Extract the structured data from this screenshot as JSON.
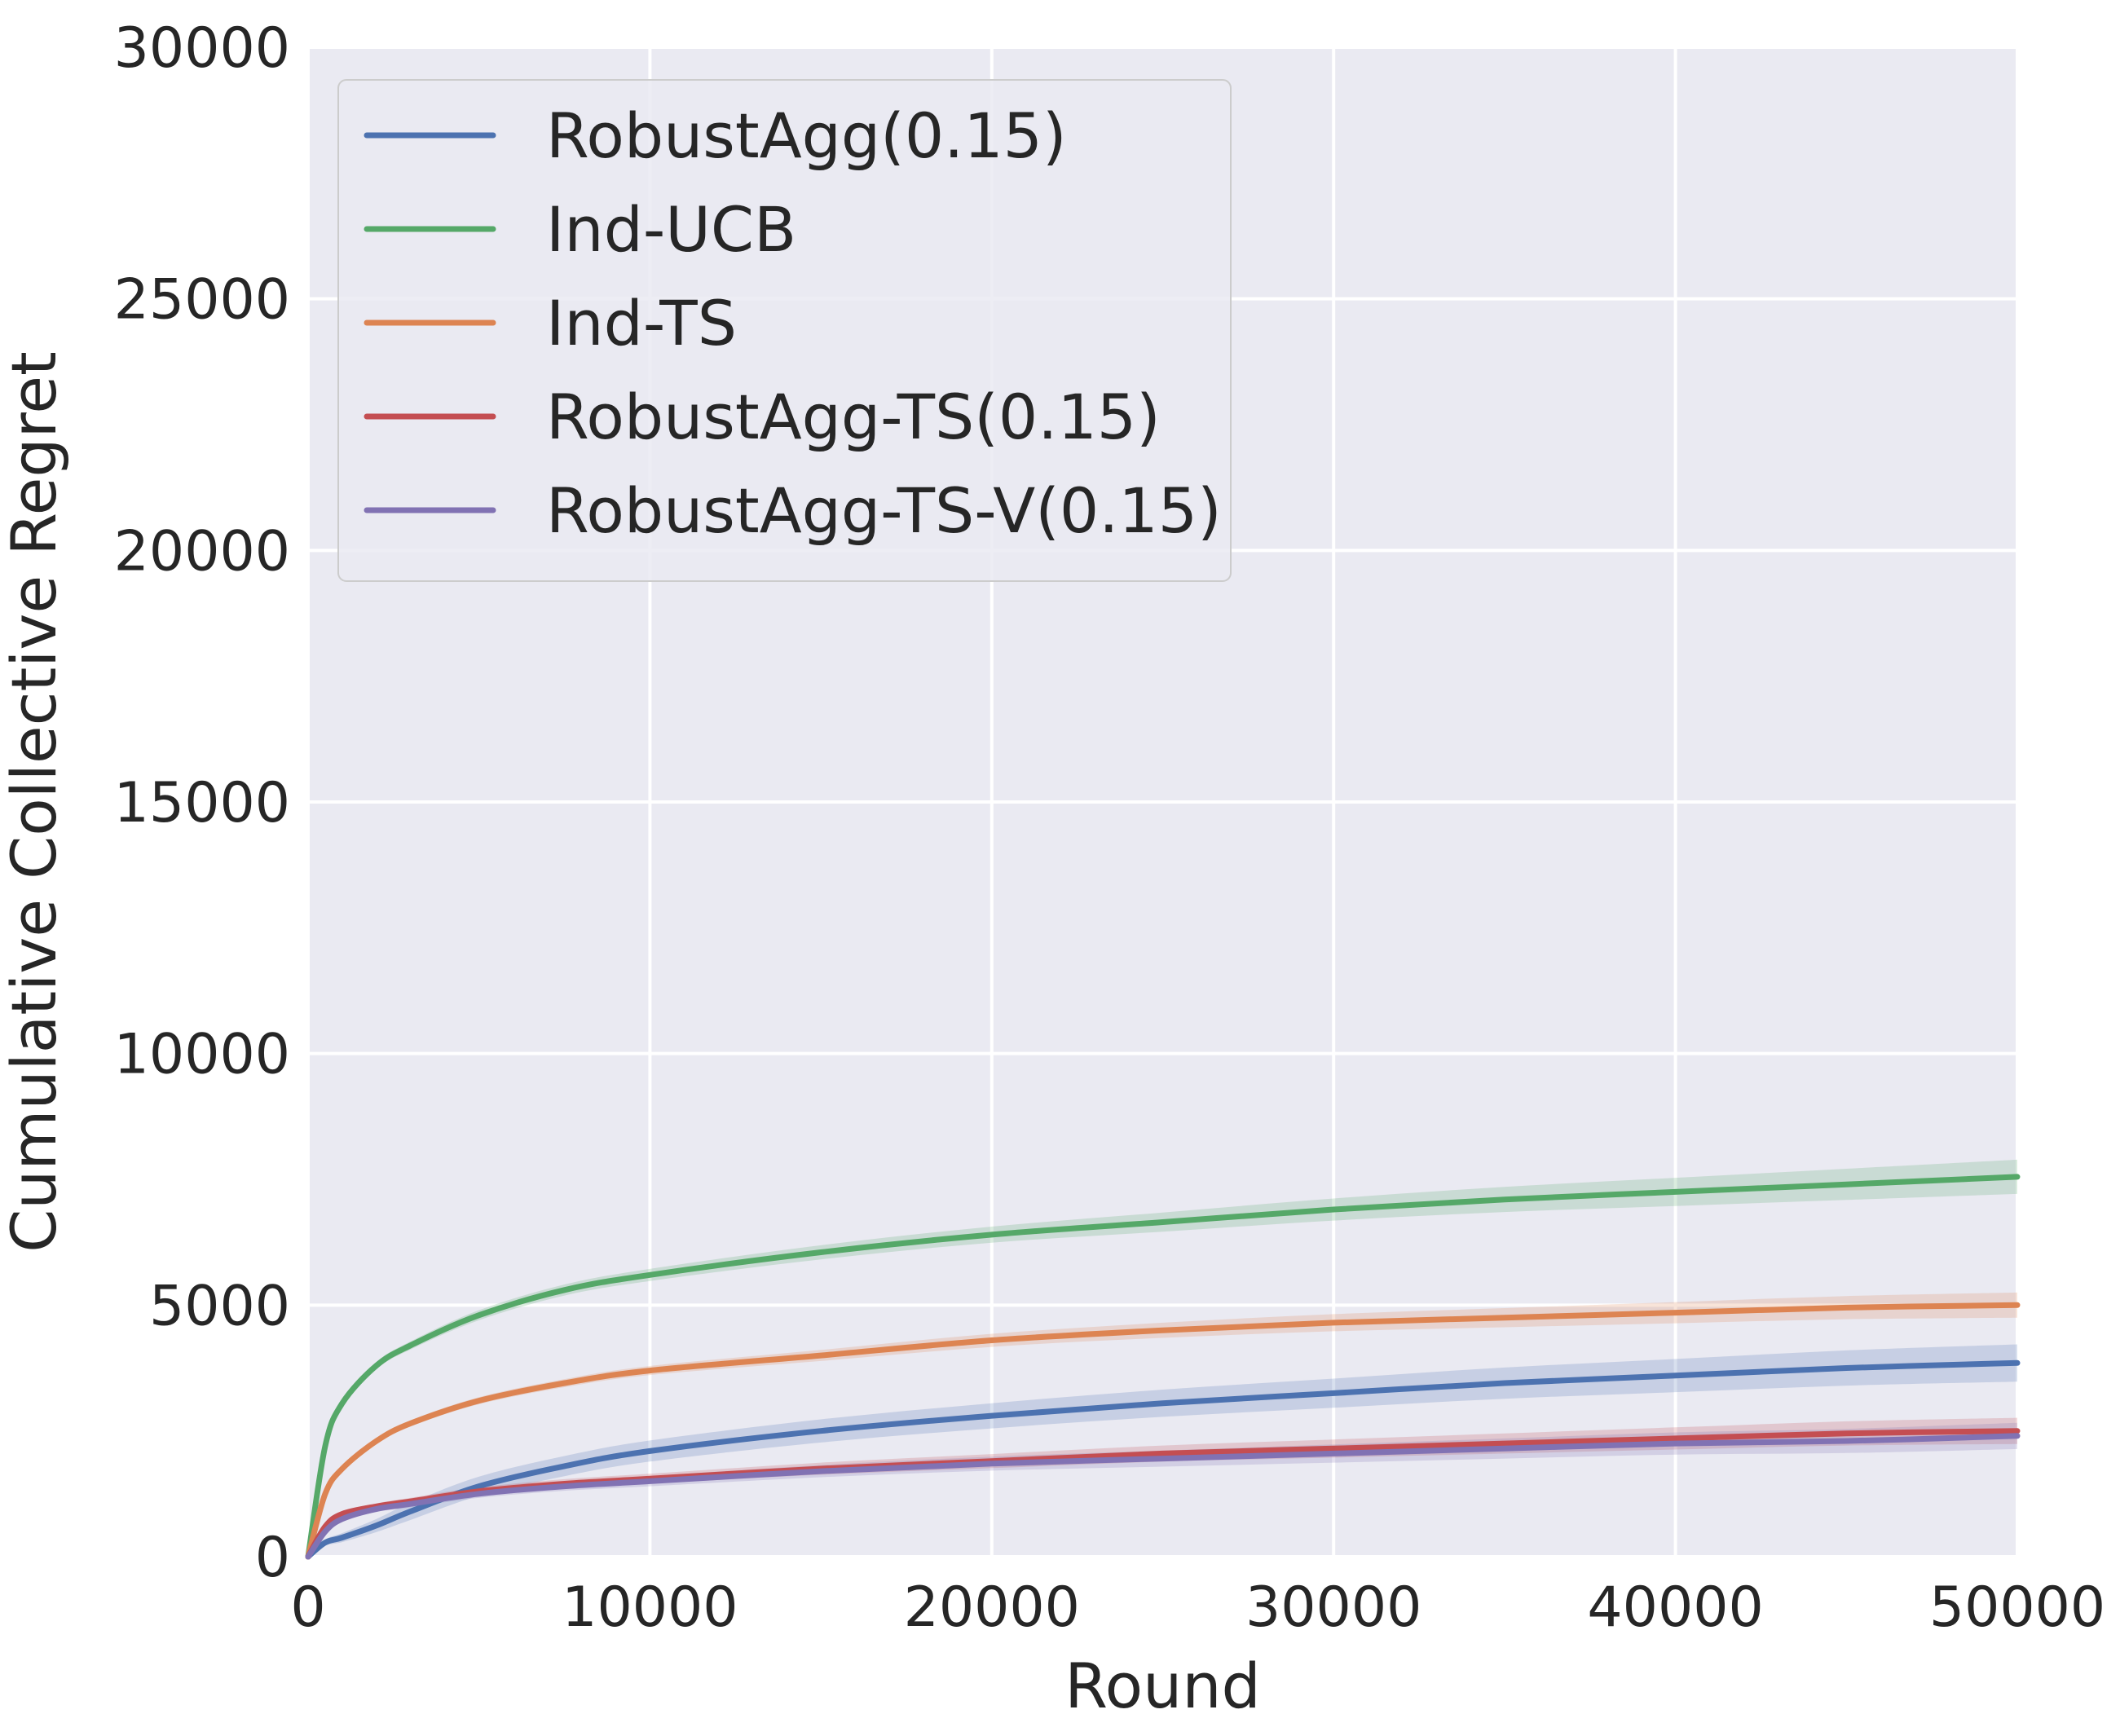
{
  "chart_data": {
    "type": "line",
    "xlabel": "Round",
    "ylabel": "Cumulative Collective Regret",
    "xlim": [
      0,
      50000
    ],
    "ylim": [
      0,
      30000
    ],
    "xticks": [
      0,
      10000,
      20000,
      30000,
      40000,
      50000
    ],
    "yticks": [
      0,
      5000,
      10000,
      15000,
      20000,
      25000,
      30000
    ],
    "xtick_labels": [
      "0",
      "10000",
      "20000",
      "30000",
      "40000",
      "50000"
    ],
    "ytick_labels": [
      "0",
      "5000",
      "10000",
      "15000",
      "20000",
      "25000",
      "30000"
    ],
    "grid": true,
    "background": "#eaeaf2",
    "legend_position": "top-left",
    "x": [
      0,
      500,
      1000,
      2000,
      3000,
      5000,
      7500,
      10000,
      15000,
      20000,
      25000,
      30000,
      35000,
      40000,
      45000,
      50000
    ],
    "series": [
      {
        "name": "RobustAgg(0.15)",
        "color": "#4c72b0",
        "values": [
          0,
          280,
          380,
          620,
          900,
          1400,
          1800,
          2100,
          2500,
          2800,
          3050,
          3250,
          3450,
          3600,
          3750,
          3850
        ],
        "band": [
          0,
          60,
          90,
          130,
          170,
          190,
          200,
          210,
          230,
          250,
          270,
          290,
          310,
          330,
          350,
          370
        ]
      },
      {
        "name": "Ind-UCB",
        "color": "#55a868",
        "values": [
          0,
          2200,
          3050,
          3800,
          4200,
          4800,
          5300,
          5600,
          6050,
          6400,
          6650,
          6900,
          7100,
          7250,
          7400,
          7550
        ],
        "band": [
          0,
          40,
          50,
          70,
          80,
          100,
          110,
          120,
          140,
          160,
          190,
          220,
          250,
          280,
          310,
          340
        ]
      },
      {
        "name": "Ind-TS",
        "color": "#dd8452",
        "values": [
          0,
          1250,
          1750,
          2300,
          2650,
          3100,
          3450,
          3700,
          4000,
          4300,
          4500,
          4650,
          4750,
          4850,
          4950,
          5000
        ],
        "band": [
          0,
          30,
          40,
          50,
          60,
          70,
          80,
          90,
          110,
          130,
          150,
          170,
          190,
          210,
          230,
          250
        ]
      },
      {
        "name": "RobustAgg-TS(0.15)",
        "color": "#c44e52",
        "values": [
          0,
          600,
          850,
          1000,
          1100,
          1300,
          1450,
          1550,
          1750,
          1900,
          2050,
          2150,
          2250,
          2350,
          2450,
          2500
        ],
        "band": [
          0,
          40,
          50,
          60,
          70,
          80,
          90,
          100,
          120,
          140,
          160,
          180,
          200,
          220,
          240,
          260
        ]
      },
      {
        "name": "RobustAgg-TS-V(0.15)",
        "color": "#8172b3",
        "values": [
          0,
          500,
          750,
          950,
          1050,
          1250,
          1400,
          1500,
          1700,
          1850,
          1950,
          2050,
          2150,
          2250,
          2300,
          2400
        ],
        "band": [
          0,
          40,
          50,
          60,
          70,
          80,
          90,
          100,
          120,
          140,
          160,
          180,
          200,
          220,
          240,
          260
        ]
      }
    ]
  }
}
